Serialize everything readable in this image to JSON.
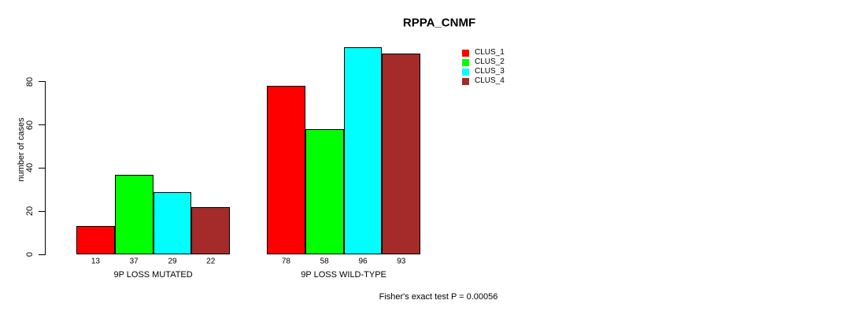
{
  "chart_data": {
    "type": "bar",
    "title": "RPPA_CNMF",
    "ylabel": "number of cases",
    "xlabel": "",
    "yticks": [
      0,
      20,
      40,
      60,
      80
    ],
    "ylim": [
      0,
      97
    ],
    "grid": false,
    "legend_position": "top-right-inside",
    "bar_border_color": "#000000",
    "background_color": "#ffffff",
    "categories": [
      "9P LOSS MUTATED",
      "9P LOSS WILD-TYPE"
    ],
    "series": [
      {
        "name": "CLUS_1",
        "color": "#FF0000",
        "values": [
          13,
          78
        ]
      },
      {
        "name": "CLUS_2",
        "color": "#00FF00",
        "values": [
          37,
          58
        ]
      },
      {
        "name": "CLUS_3",
        "color": "#00FFFF",
        "values": [
          29,
          96
        ]
      },
      {
        "name": "CLUS_4",
        "color": "#A52A2A",
        "values": [
          22,
          93
        ]
      }
    ],
    "value_labels_shown": true,
    "footer": "Fisher's exact test P = 0.00056"
  }
}
